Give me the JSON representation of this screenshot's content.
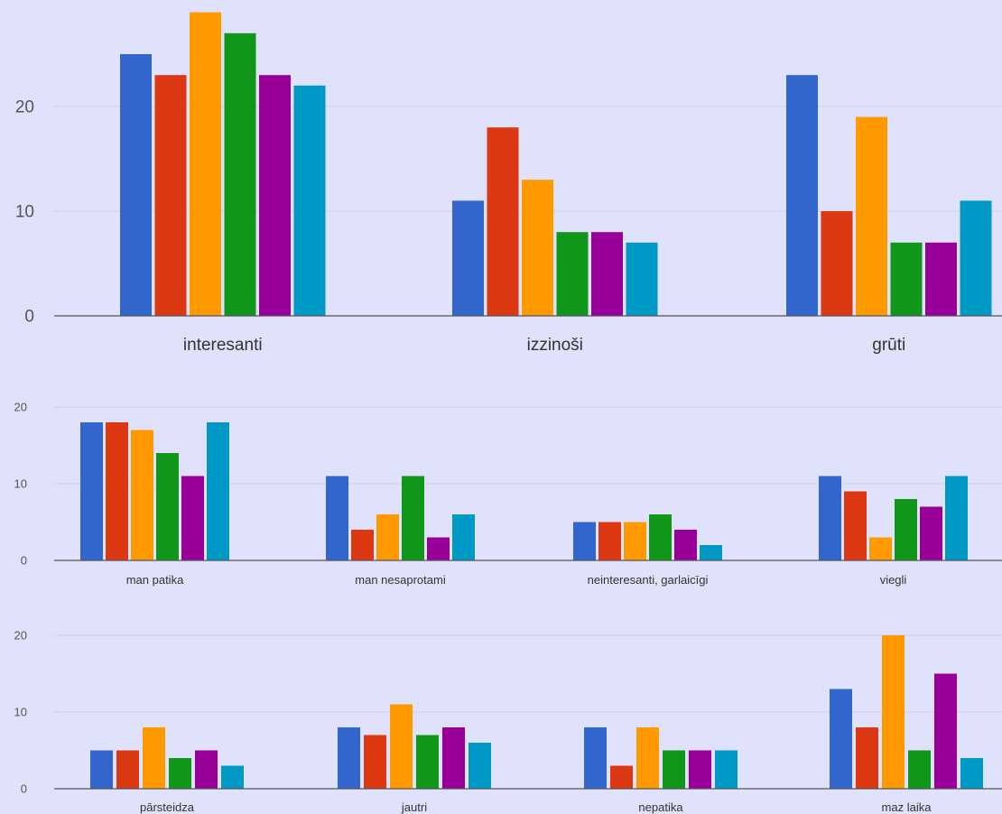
{
  "colors": [
    "#3366cc",
    "#dc3912",
    "#ff9900",
    "#109618",
    "#990099",
    "#0099c6"
  ],
  "chart_data": [
    {
      "type": "bar",
      "categories": [
        "interesanti",
        "izzinoši",
        "grūti"
      ],
      "series": [
        {
          "values": [
            25,
            11,
            23
          ]
        },
        {
          "values": [
            23,
            18,
            10
          ]
        },
        {
          "values": [
            29,
            13,
            19
          ]
        },
        {
          "values": [
            27,
            8,
            7
          ]
        },
        {
          "values": [
            23,
            8,
            7
          ]
        },
        {
          "values": [
            22,
            7,
            11
          ]
        }
      ],
      "yticks": [
        0,
        10,
        20
      ],
      "ylim": [
        0,
        29.5
      ],
      "grid": true
    },
    {
      "type": "bar",
      "categories": [
        "man patika",
        "man nesaprotami",
        "neinteresanti, garlaicīgi",
        "viegli"
      ],
      "series": [
        {
          "values": [
            18,
            11,
            5,
            11
          ]
        },
        {
          "values": [
            18,
            4,
            5,
            9
          ]
        },
        {
          "values": [
            17,
            6,
            5,
            3
          ]
        },
        {
          "values": [
            14,
            11,
            6,
            8
          ]
        },
        {
          "values": [
            11,
            3,
            4,
            7
          ]
        },
        {
          "values": [
            18,
            6,
            2,
            11
          ]
        }
      ],
      "yticks": [
        0,
        10,
        20
      ],
      "ylim": [
        0,
        20
      ],
      "grid": true
    },
    {
      "type": "bar",
      "categories": [
        "pārsteidza",
        "jautri",
        "nepatika",
        "maz laika"
      ],
      "series": [
        {
          "values": [
            5,
            8,
            8,
            13
          ]
        },
        {
          "values": [
            5,
            7,
            3,
            8
          ]
        },
        {
          "values": [
            8,
            11,
            8,
            20
          ]
        },
        {
          "values": [
            4,
            7,
            5,
            5
          ]
        },
        {
          "values": [
            5,
            8,
            5,
            15
          ]
        },
        {
          "values": [
            3,
            6,
            5,
            4
          ]
        }
      ],
      "yticks": [
        0,
        10,
        20
      ],
      "ylim": [
        0,
        20
      ],
      "grid": true
    }
  ]
}
